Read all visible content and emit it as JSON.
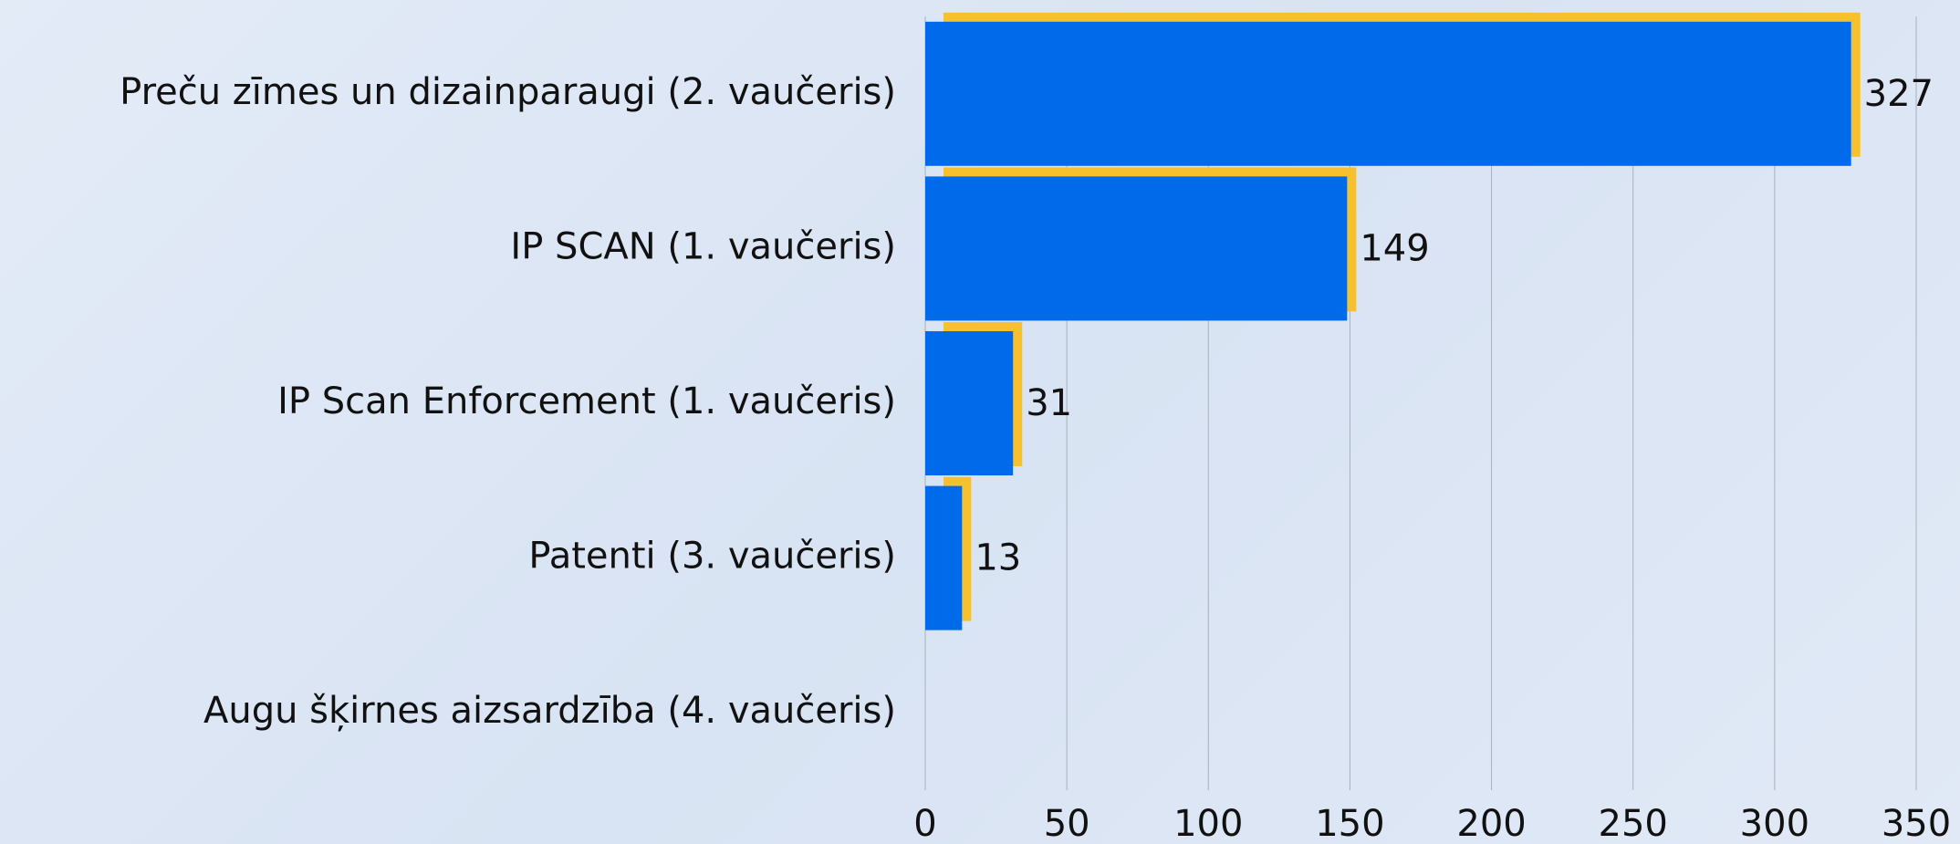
{
  "chart_data": {
    "type": "bar",
    "orientation": "horizontal",
    "categories": [
      "Preču zīmes un dizainparaugi (2. vaučeris)",
      "IP SCAN (1. vaučeris)",
      "IP Scan Enforcement (1. vaučeris)",
      "Patenti (3. vaučeris)",
      "Augu šķirnes aizsardzība (4. vaučeris)"
    ],
    "values": [
      327,
      149,
      31,
      13,
      null
    ],
    "color": "#006bea",
    "shadow_color": "#f7c12e",
    "xlim": [
      0,
      350
    ],
    "xticks": [
      0,
      50,
      100,
      150,
      200,
      250,
      300,
      350
    ],
    "grid": true
  }
}
